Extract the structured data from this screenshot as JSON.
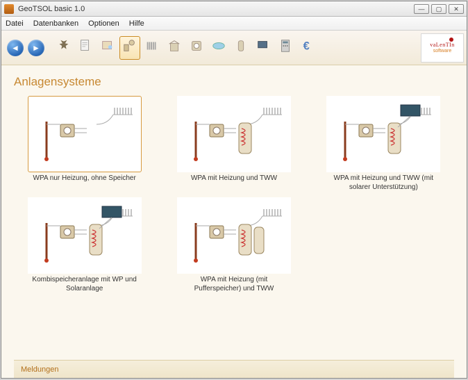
{
  "window": {
    "title": "GeoTSOL basic 1.0"
  },
  "menu": {
    "items": [
      "Datei",
      "Datenbanken",
      "Optionen",
      "Hilfe"
    ]
  },
  "toolbar": {
    "nav_back_glyph": "◄",
    "nav_forward_glyph": "►",
    "icons": [
      {
        "name": "wizard-icon"
      },
      {
        "name": "document-icon"
      },
      {
        "name": "folder-icon"
      },
      {
        "name": "systems-icon",
        "selected": true
      },
      {
        "name": "radiator-icon"
      },
      {
        "name": "building-icon"
      },
      {
        "name": "heatpump-icon"
      },
      {
        "name": "pool-icon"
      },
      {
        "name": "tank-icon"
      },
      {
        "name": "collector-icon"
      },
      {
        "name": "calculator-icon"
      },
      {
        "name": "euro-icon"
      }
    ]
  },
  "logo": {
    "line1": "vaLenTIn",
    "line2": "software"
  },
  "section": {
    "title": "Anlagensysteme"
  },
  "systems": [
    {
      "label": "WPA nur Heizung, ohne Speicher",
      "selected": true,
      "thumb": "simple"
    },
    {
      "label": "WPA mit Heizung und TWW",
      "thumb": "tank"
    },
    {
      "label": "WPA mit Heizung und TWW (mit solarer Unterstützung)",
      "thumb": "solar"
    },
    {
      "label": "Kombispeicheranlage mit WP und Solaranlage",
      "thumb": "kombi"
    },
    {
      "label": "WPA mit Heizung (mit Pufferspeicher) und TWW",
      "thumb": "puffer"
    }
  ],
  "messages": {
    "label": "Meldungen"
  },
  "colors": {
    "accent": "#c78832",
    "content_bg": "#fbf7ee",
    "toolbar_bg_top": "#faf5ef",
    "toolbar_bg_bottom": "#f2ead9",
    "selected_border": "#d69a3f"
  }
}
